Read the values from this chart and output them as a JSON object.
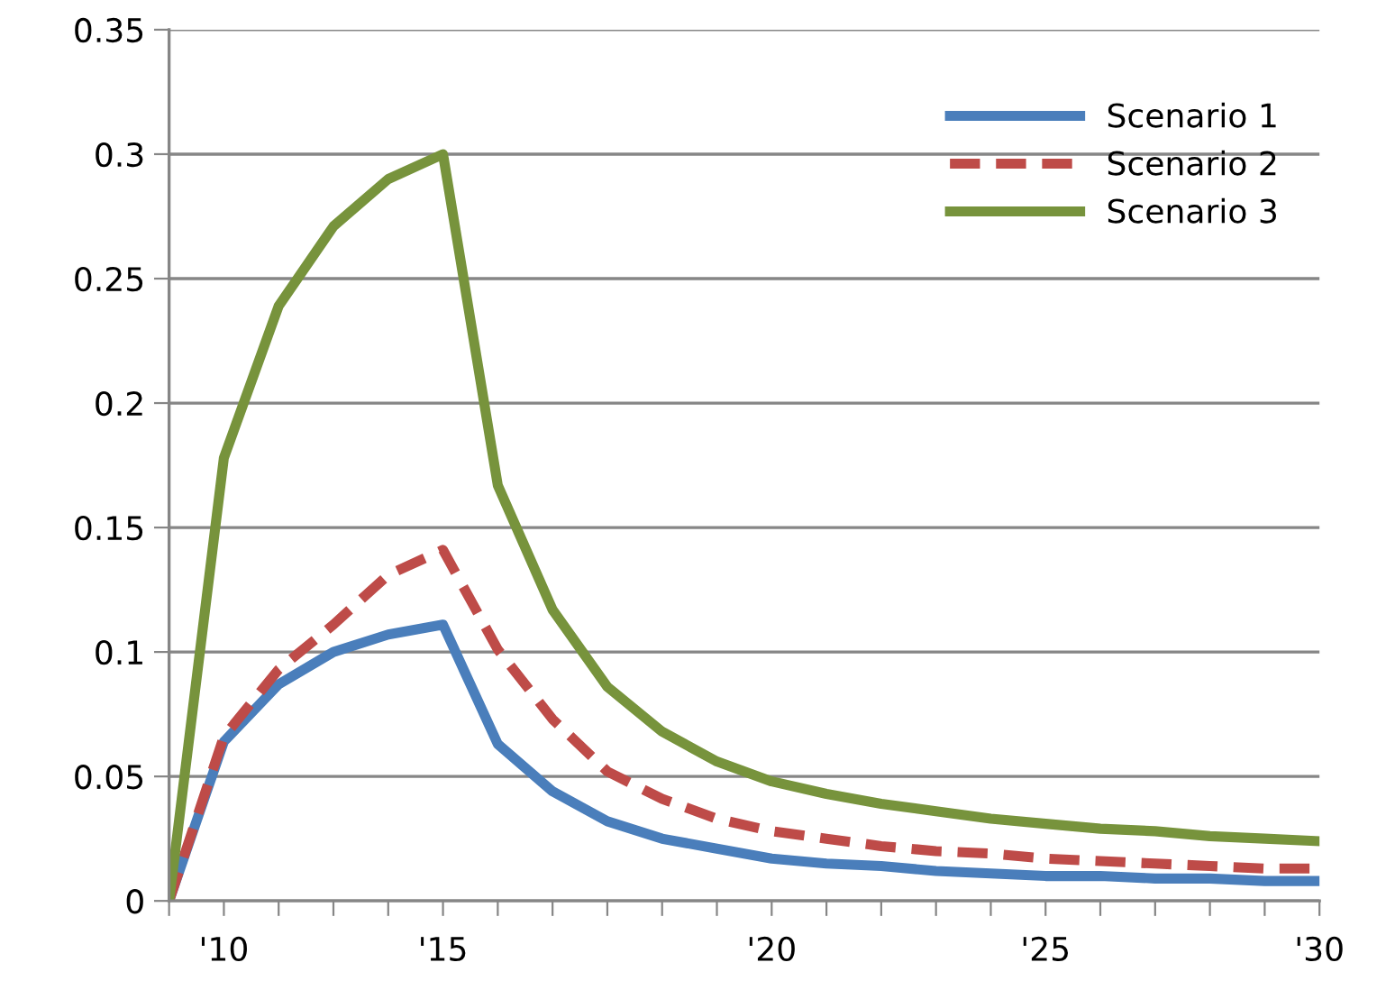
{
  "chart_data": {
    "type": "line",
    "categories": [
      null,
      "'10",
      null,
      null,
      null,
      "'15",
      null,
      null,
      null,
      null,
      null,
      "'20",
      null,
      null,
      null,
      null,
      "'25",
      null,
      null,
      null,
      null,
      "'30"
    ],
    "series": [
      {
        "name": "Scenario 1",
        "color": "#4a7ebb",
        "line_style": "solid",
        "values": [
          0,
          0.064,
          0.087,
          0.1,
          0.107,
          0.111,
          0.063,
          0.044,
          0.032,
          0.025,
          0.021,
          0.017,
          0.015,
          0.014,
          0.012,
          0.011,
          0.01,
          0.01,
          0.009,
          0.009,
          0.008,
          0.008
        ]
      },
      {
        "name": "Scenario 2",
        "color": "#be4b48",
        "line_style": "dashed",
        "values": [
          0,
          0.066,
          0.093,
          0.111,
          0.131,
          0.141,
          0.101,
          0.073,
          0.052,
          0.041,
          0.033,
          0.028,
          0.025,
          0.022,
          0.02,
          0.019,
          0.017,
          0.016,
          0.015,
          0.014,
          0.013,
          0.013
        ]
      },
      {
        "name": "Scenario 3",
        "color": "#77933c",
        "line_style": "solid",
        "values": [
          0,
          0.178,
          0.239,
          0.271,
          0.29,
          0.3,
          0.167,
          0.117,
          0.086,
          0.068,
          0.056,
          0.048,
          0.043,
          0.039,
          0.036,
          0.033,
          0.031,
          0.029,
          0.028,
          0.026,
          0.025,
          0.024
        ]
      }
    ],
    "ylim": [
      0,
      0.35
    ],
    "yticks": [
      0,
      0.05,
      0.1,
      0.15,
      0.2,
      0.25,
      0.3,
      0.35
    ],
    "grid": "y",
    "legend": "top right",
    "marker": "none"
  }
}
